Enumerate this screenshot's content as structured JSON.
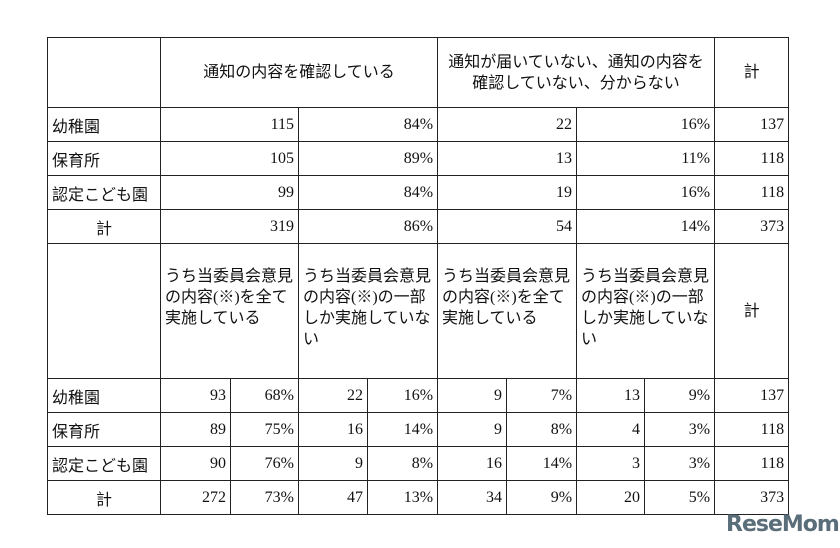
{
  "table1": {
    "headers": [
      "通知の内容を確認している",
      "通知が届いていない、通知の内容を確認していない、分からない",
      "計"
    ],
    "rows": [
      {
        "label": "幼稚園",
        "cells": [
          "115",
          "84%",
          "22",
          "16%",
          "137"
        ]
      },
      {
        "label": "保育所",
        "cells": [
          "105",
          "89%",
          "13",
          "11%",
          "118"
        ]
      },
      {
        "label": "認定こども園",
        "cells": [
          "99",
          "84%",
          "19",
          "16%",
          "118"
        ]
      },
      {
        "label": "計",
        "cells": [
          "319",
          "86%",
          "54",
          "14%",
          "373"
        ]
      }
    ]
  },
  "table2": {
    "headers": [
      "うち当委員会意見の内容(※)を全て実施している",
      "うち当委員会意見の内容(※)の一部しか実施していない",
      "うち当委員会意見の内容(※)を全て実施している",
      "うち当委員会意見の内容(※)の一部しか実施していない",
      "計"
    ],
    "rows": [
      {
        "label": "幼稚園",
        "cells": [
          "93",
          "68%",
          "22",
          "16%",
          "9",
          "7%",
          "13",
          "9%",
          "137"
        ]
      },
      {
        "label": "保育所",
        "cells": [
          "89",
          "75%",
          "16",
          "14%",
          "9",
          "8%",
          "4",
          "3%",
          "118"
        ]
      },
      {
        "label": "認定こども園",
        "cells": [
          "90",
          "76%",
          "9",
          "8%",
          "16",
          "14%",
          "3",
          "3%",
          "118"
        ]
      },
      {
        "label": "計",
        "cells": [
          "272",
          "73%",
          "47",
          "13%",
          "34",
          "9%",
          "20",
          "5%",
          "373"
        ]
      }
    ]
  },
  "watermark": "ReseMom"
}
